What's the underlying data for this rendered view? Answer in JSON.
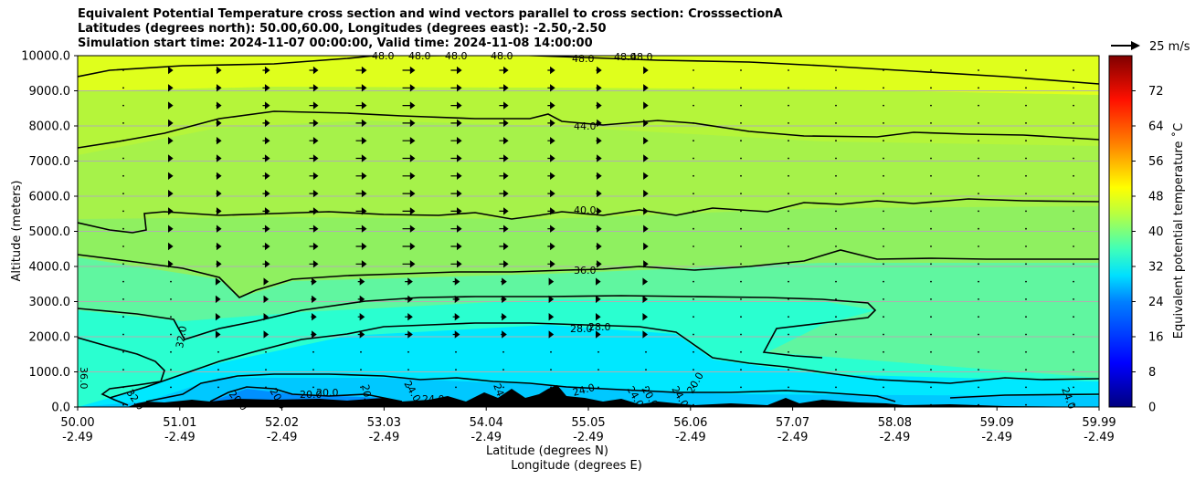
{
  "chart_data": {
    "type": "filled-contour",
    "title_lines": [
      "Equivalent Potential Temperature cross section and wind vectors parallel to cross section: CrosssectionA",
      "Latitudes (degrees north): 50.00,60.00, Longitudes (degrees east): -2.50,-2.50",
      "Simulation start time: 2024-11-07 00:00:00, Valid time: 2024-11-08 14:00:00"
    ],
    "ylabel": "Altitude (meters)",
    "xlabel_lines": [
      "Latitude (degrees N)",
      "Longitude (degrees E)"
    ],
    "ylim": [
      0,
      10000
    ],
    "xlim": [
      50.0,
      59.99
    ],
    "yticks": [
      0,
      1000,
      2000,
      3000,
      4000,
      5000,
      6000,
      7000,
      8000,
      9000,
      10000
    ],
    "ytick_labels": [
      "0.0",
      "1000.0",
      "2000.0",
      "3000.0",
      "4000.0",
      "5000.0",
      "6000.0",
      "7000.0",
      "8000.0",
      "9000.0",
      "10000.0"
    ],
    "xticks": [
      {
        "lat": "50.00",
        "lon": "-2.49"
      },
      {
        "lat": "51.01",
        "lon": "-2.49"
      },
      {
        "lat": "52.02",
        "lon": "-2.49"
      },
      {
        "lat": "53.03",
        "lon": "-2.49"
      },
      {
        "lat": "54.04",
        "lon": "-2.49"
      },
      {
        "lat": "55.05",
        "lon": "-2.49"
      },
      {
        "lat": "56.06",
        "lon": "-2.49"
      },
      {
        "lat": "57.07",
        "lon": "-2.49"
      },
      {
        "lat": "58.08",
        "lon": "-2.49"
      },
      {
        "lat": "59.09",
        "lon": "-2.49"
      },
      {
        "lat": "59.99",
        "lon": "-2.49"
      }
    ],
    "colorbar": {
      "label": "Equivalent potential temperature ˚C",
      "min": 0,
      "max": 80,
      "ticks": [
        0,
        8,
        16,
        24,
        32,
        40,
        48,
        56,
        64,
        72
      ],
      "tick_labels": [
        "0",
        "8",
        "16",
        "24",
        "32",
        "40",
        "48",
        "56",
        "64",
        "72"
      ]
    },
    "quiver_key": "25 m/s",
    "contour_labels": [
      "48.0",
      "48.0",
      "48.0",
      "48.0",
      "48.0",
      "48.0",
      "48.0",
      "44.0",
      "40.0",
      "36.0",
      "28.0",
      "28.0",
      "32.0",
      "36.0",
      "32.0",
      "24.0",
      "20.0",
      "20.0",
      "20.0",
      "20.0",
      "24.0",
      "24.0",
      "24.0",
      "24.0",
      "24.0",
      "20.0",
      "20.0",
      "20.0",
      "24.0"
    ],
    "contour_levels": [
      20,
      24,
      28,
      32,
      36,
      40,
      44,
      48
    ]
  }
}
